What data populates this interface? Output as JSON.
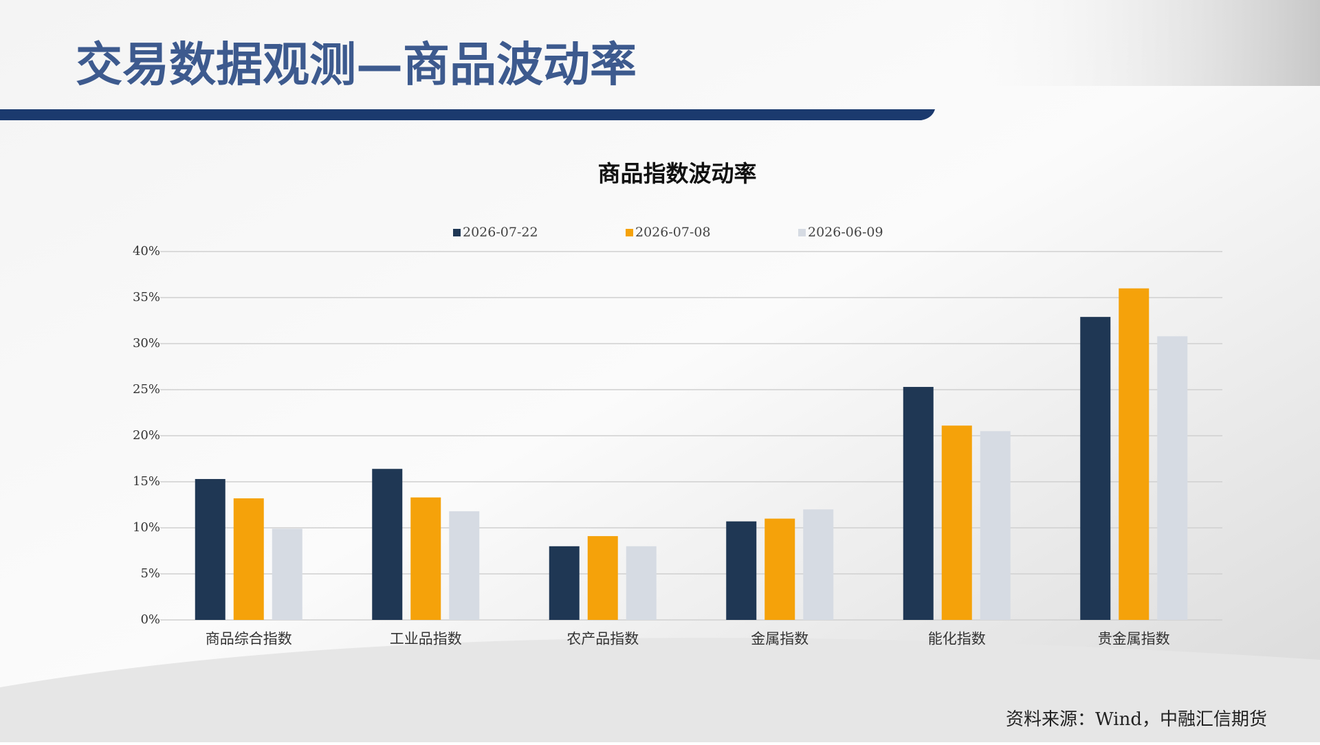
{
  "header": {
    "title": "交易数据观测—商品波动率"
  },
  "chart_data": {
    "type": "bar",
    "title": "商品指数波动率",
    "categories": [
      "商品综合指数",
      "工业品指数",
      "农产品指数",
      "金属指数",
      "能化指数",
      "贵金属指数"
    ],
    "series": [
      {
        "name": "2026-07-22",
        "color": "#1f3754",
        "values": [
          15.3,
          16.4,
          8.0,
          10.7,
          25.3,
          32.9
        ]
      },
      {
        "name": "2026-07-08",
        "color": "#f5a20a",
        "values": [
          13.2,
          13.3,
          9.1,
          11.0,
          21.1,
          36.0
        ]
      },
      {
        "name": "2026-06-09",
        "color": "#d6dbe3",
        "values": [
          9.9,
          11.8,
          8.0,
          12.0,
          20.5,
          30.8
        ]
      }
    ],
    "ylim": [
      0,
      40
    ],
    "yticks": [
      {
        "value": 0,
        "label": "0%"
      },
      {
        "value": 5,
        "label": "5%"
      },
      {
        "value": 10,
        "label": "10%"
      },
      {
        "value": 15,
        "label": "15%"
      },
      {
        "value": 20,
        "label": "20%"
      },
      {
        "value": 25,
        "label": "25%"
      },
      {
        "value": 30,
        "label": "30%"
      },
      {
        "value": 35,
        "label": "35%"
      },
      {
        "value": 40,
        "label": "40%"
      }
    ],
    "grid": true,
    "legend": "top"
  },
  "footer": {
    "source": "资料来源：Wind，中融汇信期货"
  }
}
